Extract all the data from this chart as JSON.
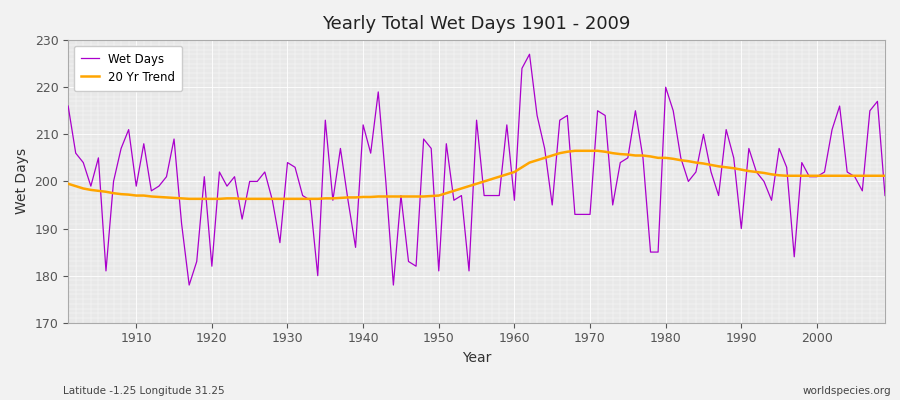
{
  "title": "Yearly Total Wet Days 1901 - 2009",
  "xlabel": "Year",
  "ylabel": "Wet Days",
  "subtitle": "Latitude -1.25 Longitude 31.25",
  "watermark": "worldspecies.org",
  "ylim": [
    170,
    230
  ],
  "xlim": [
    1901,
    2009
  ],
  "yticks": [
    170,
    180,
    190,
    200,
    210,
    220,
    230
  ],
  "xticks": [
    1910,
    1920,
    1930,
    1940,
    1950,
    1960,
    1970,
    1980,
    1990,
    2000
  ],
  "wet_days_color": "#AA00CC",
  "trend_color": "#FFA500",
  "plot_bg_color": "#E8E8E8",
  "fig_bg_color": "#F2F2F2",
  "grid_color": "#FFFFFF",
  "wet_days": [
    216,
    206,
    204,
    199,
    205,
    181,
    200,
    207,
    211,
    199,
    208,
    198,
    199,
    201,
    209,
    191,
    178,
    183,
    201,
    182,
    202,
    199,
    201,
    192,
    200,
    200,
    202,
    196,
    187,
    204,
    203,
    197,
    196,
    180,
    213,
    196,
    207,
    196,
    186,
    212,
    206,
    219,
    200,
    178,
    197,
    183,
    182,
    209,
    207,
    181,
    208,
    196,
    197,
    181,
    213,
    197,
    197,
    197,
    212,
    196,
    224,
    227,
    214,
    207,
    195,
    213,
    214,
    193,
    193,
    193,
    215,
    214,
    195,
    204,
    205,
    215,
    205,
    185,
    185,
    220,
    215,
    205,
    200,
    202,
    210,
    202,
    197,
    211,
    205,
    190,
    207,
    202,
    200,
    196,
    207,
    203,
    184,
    204,
    201,
    201,
    202,
    211,
    216,
    202,
    201,
    198,
    215,
    217,
    197
  ],
  "trend_years": [
    1901,
    1902,
    1903,
    1904,
    1905,
    1906,
    1907,
    1908,
    1909,
    1910,
    1911,
    1912,
    1913,
    1914,
    1915,
    1916,
    1917,
    1918,
    1919,
    1920,
    1921,
    1922,
    1923,
    1924,
    1925,
    1926,
    1927,
    1928,
    1929,
    1930,
    1931,
    1932,
    1933,
    1934,
    1935,
    1936,
    1937,
    1938,
    1939,
    1940,
    1941,
    1942,
    1943,
    1944,
    1945,
    1946,
    1947,
    1948,
    1949,
    1950,
    1951,
    1952,
    1953,
    1954,
    1955,
    1956,
    1957,
    1958,
    1959,
    1960,
    1961,
    1962,
    1963,
    1964,
    1965,
    1966,
    1967,
    1968,
    1969,
    1970,
    1971,
    1972,
    1973,
    1974,
    1975,
    1976,
    1977,
    1978,
    1979,
    1980,
    1981,
    1982,
    1983,
    1984,
    1985,
    1986,
    1987,
    1988,
    1989,
    1990,
    1991,
    1992,
    1993,
    1994,
    1995,
    1996,
    1997,
    1998,
    1999,
    2000,
    2001,
    2002,
    2003,
    2004,
    2005,
    2006,
    2007,
    2008,
    2009
  ],
  "trend_values": [
    199.5,
    199.0,
    198.5,
    198.2,
    198.0,
    197.8,
    197.5,
    197.3,
    197.2,
    197.0,
    197.0,
    196.8,
    196.7,
    196.6,
    196.5,
    196.4,
    196.3,
    196.3,
    196.3,
    196.3,
    196.3,
    196.4,
    196.4,
    196.3,
    196.3,
    196.3,
    196.3,
    196.3,
    196.3,
    196.3,
    196.3,
    196.3,
    196.3,
    196.3,
    196.4,
    196.4,
    196.5,
    196.6,
    196.6,
    196.7,
    196.7,
    196.8,
    196.8,
    196.8,
    196.8,
    196.8,
    196.8,
    196.8,
    196.9,
    197.0,
    197.5,
    198.0,
    198.5,
    199.0,
    199.5,
    200.0,
    200.5,
    201.0,
    201.5,
    202.0,
    203.0,
    204.0,
    204.5,
    205.0,
    205.5,
    206.0,
    206.3,
    206.5,
    206.5,
    206.5,
    206.5,
    206.3,
    206.0,
    205.8,
    205.7,
    205.5,
    205.5,
    205.3,
    205.0,
    205.0,
    204.8,
    204.5,
    204.3,
    204.0,
    203.8,
    203.5,
    203.2,
    203.0,
    202.8,
    202.5,
    202.2,
    202.0,
    201.8,
    201.5,
    201.3,
    201.2,
    201.2,
    201.2,
    201.2,
    201.2,
    201.2,
    201.2,
    201.2,
    201.2,
    201.2,
    201.2,
    201.2,
    201.2,
    201.2
  ]
}
